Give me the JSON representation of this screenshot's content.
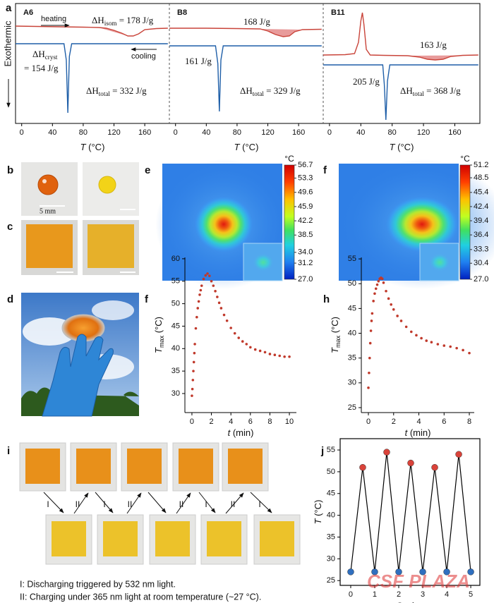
{
  "panel_labels": [
    "a",
    "b",
    "c",
    "e",
    "f",
    "d",
    "f",
    "h",
    "i",
    "j"
  ],
  "photos": {
    "scale_label": "5 mm"
  },
  "cycling": {
    "arrow_labels": [
      "I",
      "II",
      "I",
      "II",
      "II",
      "I",
      "II",
      "I"
    ],
    "captions": [
      "I: Discharging triggered by 532 nm light.",
      "II: Charging under 365 nm light at room temperature (~27 °C)."
    ]
  },
  "watermark": "CSF PLAZA",
  "chart_data": [
    {
      "type": "dsc",
      "ylabel": "Exothermic",
      "xlabel": {
        "var": "T",
        "unit": " (°C)"
      },
      "xlim": [
        -8,
        192
      ],
      "xticks": [
        0,
        40,
        80,
        120,
        160
      ],
      "ylim": [
        0,
        170
      ],
      "subplots": [
        {
          "title": "A6",
          "fill_color": "#e89b9b",
          "series": [
            {
              "color": "#c9443a",
              "x": [
                -8,
                20,
                50,
                80,
                100,
                110,
                120,
                130,
                138,
                145,
                152,
                160,
                175,
                190
              ],
              "values": [
                138,
                137.5,
                137,
                136.5,
                136,
                135,
                132,
                128,
                124,
                124,
                127,
                133,
                134.5,
                135
              ]
            },
            {
              "color": "#1f5fa8",
              "x": [
                -8,
                20,
                40,
                55,
                58,
                60,
                62,
                65,
                80,
                120,
                160,
                190
              ],
              "values": [
                113,
                113,
                113,
                113,
                90,
                15,
                95,
                113,
                113,
                113,
                113,
                113
              ]
            }
          ],
          "annotations": [
            {
              "text": "heating"
            },
            {
              "text": "ΔH",
              "sub": "isom",
              "rest": " = 178 J/g"
            },
            {
              "text": "cooling"
            },
            {
              "text": "ΔH",
              "sub": "cryst"
            },
            {
              "text": "= 154 J/g"
            },
            {
              "text": "ΔH",
              "sub": "total",
              "rest": " = 332 J/g"
            }
          ]
        },
        {
          "title": "B8",
          "fill_color": "#e89b9b",
          "series": [
            {
              "color": "#c9443a",
              "x": [
                -8,
                40,
                80,
                110,
                120,
                130,
                140,
                148,
                155,
                165,
                190
              ],
              "values": [
                135,
                135,
                134.5,
                134,
                131,
                126,
                123,
                124,
                130,
                133,
                133.5
              ]
            },
            {
              "color": "#1f5fa8",
              "x": [
                -8,
                20,
                40,
                52,
                55,
                57,
                59,
                62,
                80,
                140,
                190
              ],
              "values": [
                110,
                110,
                110,
                110,
                85,
                17,
                90,
                110,
                110,
                110,
                110
              ]
            }
          ],
          "annotations": [
            {
              "text": "168 J/g"
            },
            {
              "text": "161 J/g"
            },
            {
              "text": "ΔH",
              "sub": "total",
              "rest": " = 329 J/g"
            }
          ]
        },
        {
          "title": "B11",
          "fill_color": "#e89b9b",
          "series": [
            {
              "color": "#c9443a",
              "x": [
                -8,
                20,
                32,
                37,
                40,
                42,
                44,
                47,
                52,
                70,
                100,
                115,
                125,
                135,
                145,
                155,
                170,
                190
              ],
              "values": [
                97,
                97.5,
                99,
                115,
                145,
                157,
                140,
                105,
                97,
                96.5,
                96,
                94,
                91,
                90,
                91,
                95,
                96.5,
                97
              ]
            },
            {
              "color": "#1f5fa8",
              "x": [
                -8,
                30,
                60,
                68,
                70,
                72,
                74,
                77,
                100,
                190
              ],
              "values": [
                83,
                83,
                83,
                83,
                55,
                5,
                60,
                83,
                83,
                83
              ]
            }
          ],
          "annotations": [
            {
              "text": "163 J/g"
            },
            {
              "text": "205 J/g"
            },
            {
              "text": "ΔH",
              "sub": "total",
              "rest": " = 368 J/g"
            }
          ]
        }
      ]
    },
    {
      "type": "heatmap",
      "unit": "°C",
      "clim": [
        27,
        56.7
      ],
      "cticks": [
        56.7,
        53.3,
        49.6,
        45.9,
        42.2,
        38.5,
        {
          "value": 34,
          "label": "34.0"
        },
        31.2,
        {
          "value": 27,
          "label": "27.0"
        }
      ]
    },
    {
      "type": "heatmap",
      "unit": "°C",
      "clim": [
        27,
        51.2
      ],
      "cticks": [
        51.2,
        48.5,
        45.4,
        42.4,
        39.4,
        36.4,
        33.3,
        30.4,
        {
          "value": 27,
          "label": "27.0"
        }
      ]
    },
    {
      "type": "scatter",
      "xlabel": {
        "var": "t",
        "unit": " (min)"
      },
      "ylabel": {
        "var": "T",
        "sub": "max",
        "unit": " (°C)"
      },
      "xlim": [
        -0.72,
        10.72
      ],
      "xticks": [
        0,
        2,
        4,
        6,
        8,
        10
      ],
      "ylim": [
        25.76,
        60.3
      ],
      "yticks": [
        30,
        35,
        40,
        45,
        50,
        55,
        60
      ],
      "series": [
        {
          "color": "#c0392b",
          "x": [
            0,
            0.05,
            0.1,
            0.15,
            0.2,
            0.25,
            0.3,
            0.4,
            0.5,
            0.6,
            0.7,
            0.8,
            0.9,
            1.0,
            1.2,
            1.4,
            1.6,
            1.8,
            2.0,
            2.2,
            2.4,
            2.6,
            2.8,
            3.0,
            3.3,
            3.6,
            4.0,
            4.4,
            4.8,
            5.2,
            5.6,
            6.0,
            6.5,
            7.0,
            7.5,
            8.0,
            8.5,
            9.0,
            9.5,
            10.0
          ],
          "values": [
            29.5,
            31,
            33,
            35,
            37,
            39,
            41,
            44.5,
            47,
            49,
            50.5,
            52,
            53,
            54,
            55.5,
            56.3,
            56.7,
            56.2,
            55,
            54,
            52.8,
            51.5,
            50.2,
            49,
            47.5,
            46.2,
            44.6,
            43.4,
            42.4,
            41.6,
            41,
            40.3,
            39.8,
            39.5,
            39.2,
            38.8,
            38.6,
            38.4,
            38.2,
            38.2
          ]
        }
      ]
    },
    {
      "type": "scatter",
      "xlabel": {
        "var": "t",
        "unit": " (min)"
      },
      "ylabel": {
        "var": "T",
        "sub": "max",
        "unit": " (°C)"
      },
      "xlim": [
        -0.56,
        8.39
      ],
      "xticks": [
        0,
        2,
        4,
        6,
        8
      ],
      "ylim": [
        24,
        55.3
      ],
      "yticks": [
        25,
        30,
        35,
        40,
        45,
        50,
        55
      ],
      "series": [
        {
          "color": "#c0392b",
          "x": [
            0,
            0.05,
            0.1,
            0.15,
            0.2,
            0.25,
            0.3,
            0.4,
            0.5,
            0.6,
            0.7,
            0.8,
            0.9,
            1.0,
            1.1,
            1.2,
            1.4,
            1.6,
            1.8,
            2.0,
            2.3,
            2.6,
            3.0,
            3.4,
            3.8,
            4.2,
            4.6,
            5.0,
            5.5,
            6.0,
            6.5,
            7.0,
            7.5,
            8.0
          ],
          "values": [
            29,
            32,
            35,
            38,
            40.5,
            42.5,
            44,
            46.5,
            48,
            49,
            49.8,
            50.5,
            51,
            51.2,
            51,
            50.2,
            48.5,
            47,
            45.8,
            44.8,
            43.5,
            42.5,
            41.3,
            40.3,
            39.6,
            39,
            38.5,
            38.2,
            37.8,
            37.5,
            37.3,
            37,
            36.6,
            36
          ]
        }
      ]
    },
    {
      "type": "line",
      "xlabel": "Cycles",
      "ylabel": {
        "var": "T",
        "unit": " (°C)"
      },
      "xlim": [
        -0.44,
        5.38
      ],
      "xticks": [
        0,
        1,
        2,
        3,
        4,
        5
      ],
      "ylim": [
        23.9,
        57.6
      ],
      "yticks": [
        25,
        30,
        35,
        40,
        45,
        50,
        55
      ],
      "series": [
        {
          "color": "#000000",
          "marker_colors": [
            "#2f6fbf",
            "#d9433a"
          ],
          "x": [
            0,
            0.5,
            1,
            1.5,
            2,
            2.5,
            3,
            3.5,
            4,
            4.5,
            5
          ],
          "values": [
            27,
            51,
            27,
            54.5,
            27,
            52,
            27,
            51,
            27,
            54,
            27
          ]
        }
      ]
    }
  ]
}
